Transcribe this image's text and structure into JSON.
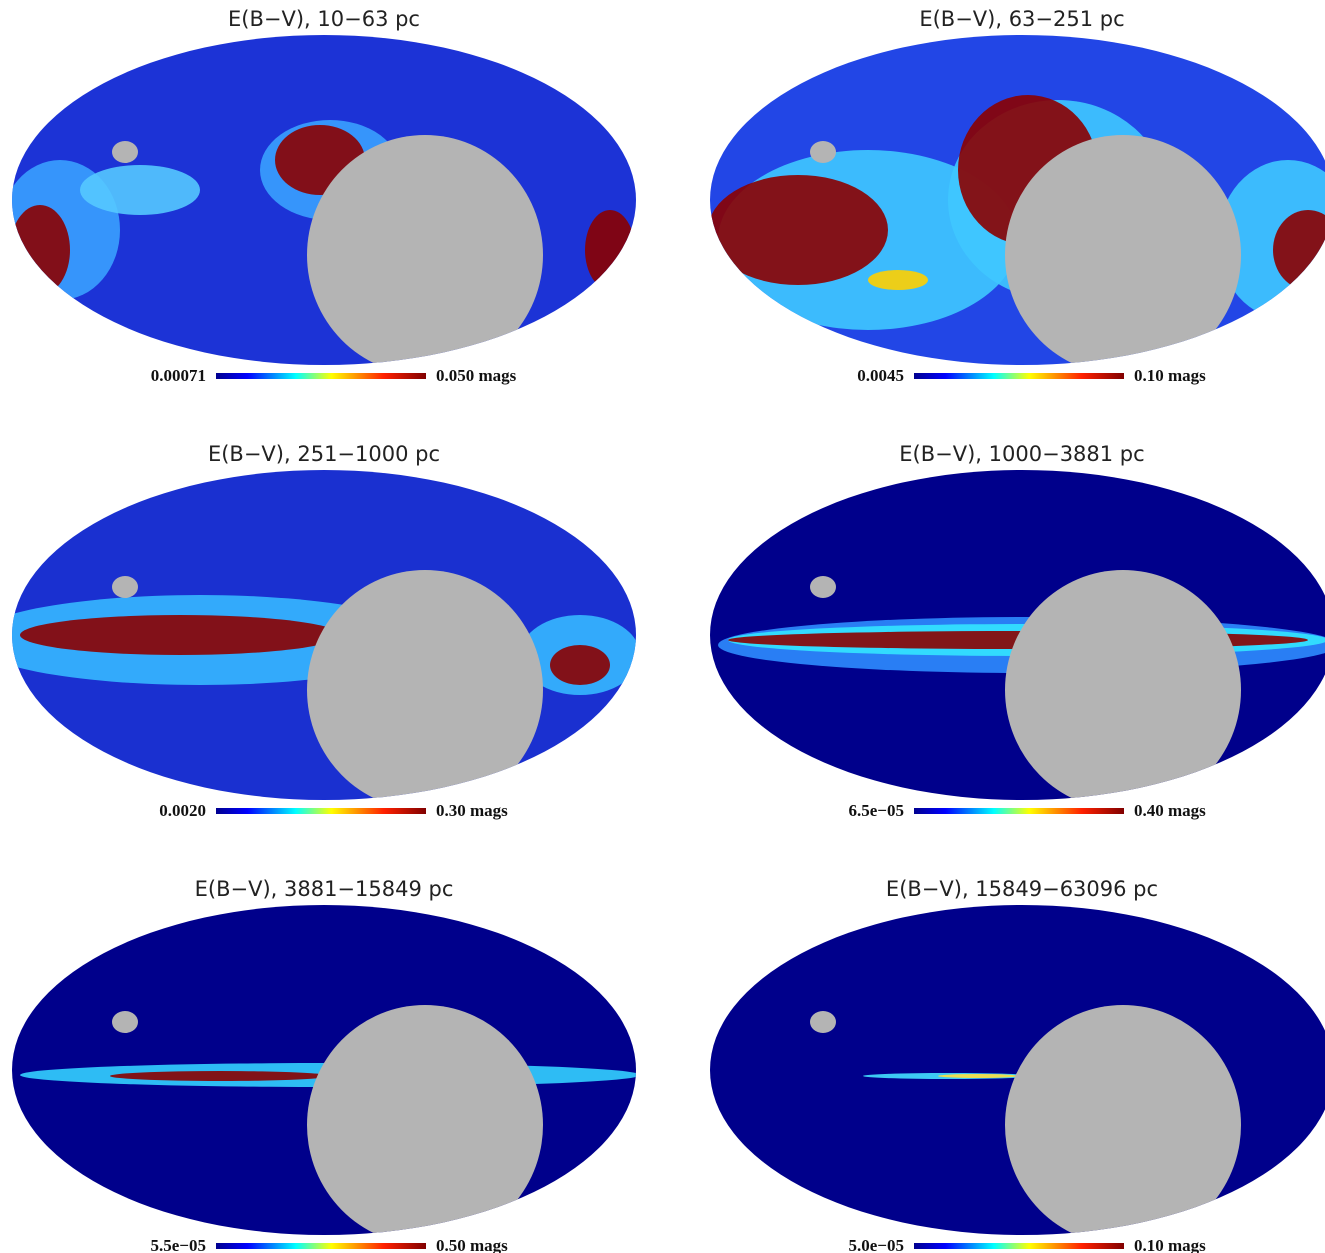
{
  "panels": [
    {
      "title": "E(B−V), 10−63 pc",
      "scale_min": "0.00071",
      "scale_max": "0.050 mags"
    },
    {
      "title": "E(B−V), 63−251 pc",
      "scale_min": "0.0045",
      "scale_max": "0.10 mags"
    },
    {
      "title": "E(B−V), 251−1000 pc",
      "scale_min": "0.0020",
      "scale_max": "0.30 mags"
    },
    {
      "title": "E(B−V), 1000−3881 pc",
      "scale_min": "6.5e−05",
      "scale_max": "0.40 mags"
    },
    {
      "title": "E(B−V), 3881−15849 pc",
      "scale_min": "5.5e−05",
      "scale_max": "0.50 mags"
    },
    {
      "title": "E(B−V), 15849−63096 pc",
      "scale_min": "5.0e−05",
      "scale_max": "0.10 mags"
    }
  ]
}
